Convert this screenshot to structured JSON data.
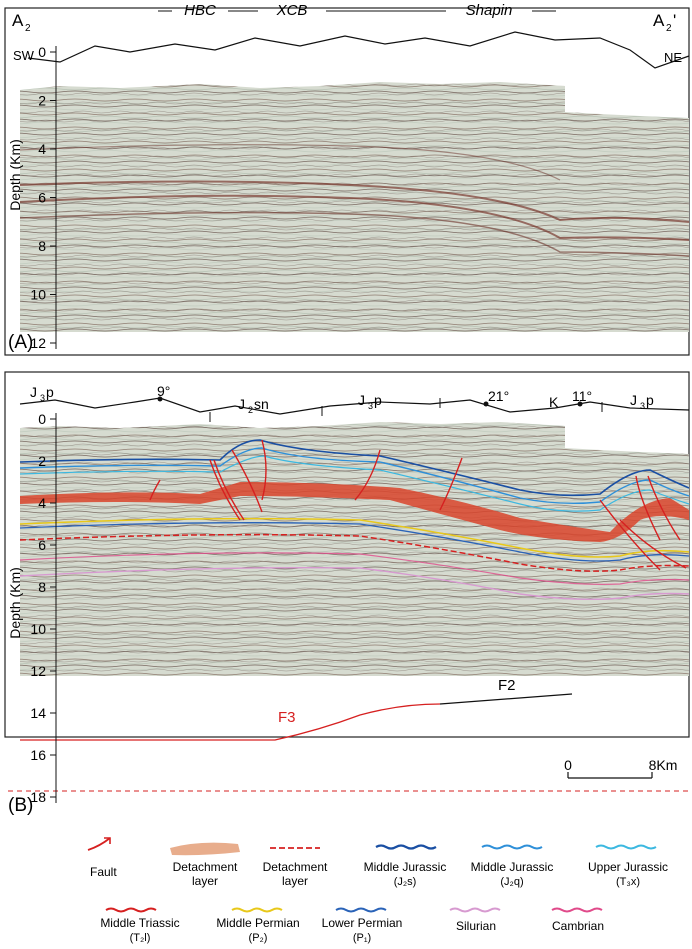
{
  "panel_a": {
    "label": "(A)",
    "left_end": "A",
    "left_end_sub": "2",
    "right_end": "A",
    "right_end_sub": "2",
    "right_end_prime": "'",
    "left_dir": "SW",
    "right_dir": "NE",
    "regions": [
      "HBC",
      "XCB",
      "Shapin"
    ],
    "y_axis_title": "Depth (Km)",
    "y_ticks": [
      "0",
      "2",
      "4",
      "6",
      "8",
      "10",
      "12"
    ]
  },
  "panel_b": {
    "label": "(B)",
    "surface_units": [
      {
        "main": "J",
        "sub": "3",
        "tail": "p"
      },
      {
        "main": "J",
        "sub": "2",
        "tail": "sn"
      },
      {
        "main": "J",
        "sub": "3",
        "tail": "p"
      },
      {
        "main": "K",
        "sub": "",
        "tail": ""
      },
      {
        "main": "J",
        "sub": "3",
        "tail": "p"
      }
    ],
    "dips": [
      "9°",
      "21°",
      "11°"
    ],
    "y_axis_title": "Depth (Km)",
    "y_ticks": [
      "0",
      "2",
      "4",
      "6",
      "8",
      "10",
      "12",
      "14",
      "16",
      "18"
    ],
    "faults": [
      "F2",
      "F3"
    ],
    "scale_start": "0",
    "scale_end": "8Km"
  },
  "legend": [
    {
      "name": "Fault",
      "sub": "",
      "color": "#d62020"
    },
    {
      "name": "Detachment layer",
      "sub": "",
      "color": "#e8ad8c"
    },
    {
      "name": "Detachment layer",
      "sub": "",
      "color": "#d62020"
    },
    {
      "name": "Middle Jurassic",
      "sub": "(J₂s)",
      "color": "#1a4fa3"
    },
    {
      "name": "Middle Jurassic",
      "sub": "(J₂q)",
      "color": "#2e8fd8"
    },
    {
      "name": "Upper Jurassic",
      "sub": "(T₃x)",
      "color": "#3cb8e0"
    },
    {
      "name": "Middle Triassic",
      "sub": "(T₂l)",
      "color": "#d62020"
    },
    {
      "name": "Middle Permian",
      "sub": "(P₂)",
      "color": "#e8c81a"
    },
    {
      "name": "Lower Permian",
      "sub": "(P₁)",
      "color": "#2a63b8"
    },
    {
      "name": "Silurian",
      "sub": "",
      "color": "#d79ad0"
    },
    {
      "name": "Cambrian",
      "sub": "",
      "color": "#e04a8a"
    }
  ]
}
